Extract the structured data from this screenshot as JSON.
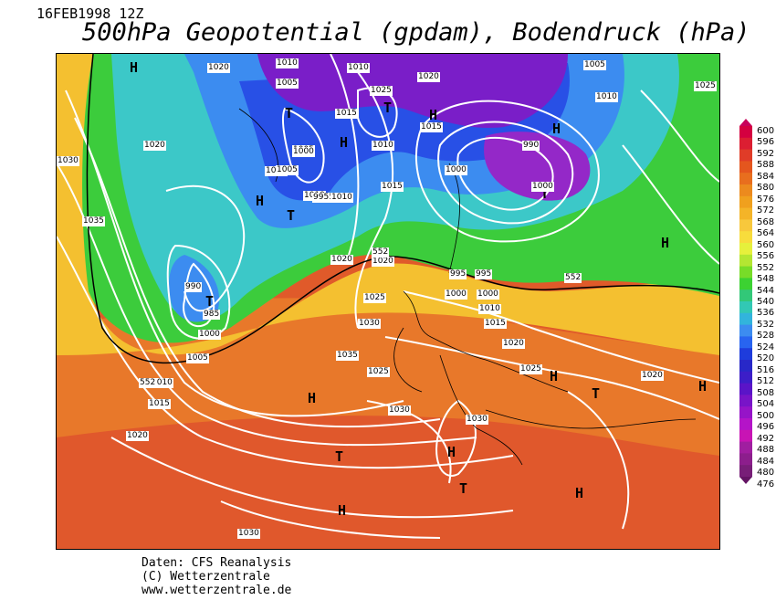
{
  "header": {
    "datetime": "16FEB1998 12Z",
    "title": "500hPa Geopotential (gpdam), Bodendruck (hPa)"
  },
  "footer": {
    "line1": "Daten: CFS Reanalysis",
    "line2": "(C) Wetterzentrale",
    "line3": "www.wetterzentrale.de"
  },
  "legend": {
    "ticks": [
      "600",
      "596",
      "592",
      "588",
      "584",
      "580",
      "576",
      "572",
      "568",
      "564",
      "560",
      "556",
      "552",
      "548",
      "544",
      "540",
      "536",
      "532",
      "528",
      "524",
      "520",
      "516",
      "512",
      "508",
      "504",
      "500",
      "496",
      "492",
      "488",
      "484",
      "480",
      "476"
    ],
    "colors": [
      "#c8005a",
      "#d40040",
      "#dc1e32",
      "#e03c28",
      "#e4561e",
      "#e86e1e",
      "#ec8a1e",
      "#f0a01e",
      "#f4b428",
      "#f8c83c",
      "#f8dc3c",
      "#e6f03c",
      "#b4e632",
      "#78dc28",
      "#3cd232",
      "#32c878",
      "#32c8b4",
      "#32b4dc",
      "#3c8cf0",
      "#2864f0",
      "#1e3cdc",
      "#2828c8",
      "#3c1ec8",
      "#5a14c8",
      "#7814c8",
      "#9614c8",
      "#b414c8",
      "#c814b4",
      "#a01ea0",
      "#8c1e8c",
      "#781e78",
      "#641464"
    ]
  },
  "map": {
    "high_symbol": "H",
    "low_symbol": "T",
    "pressure_labels": [
      "1020",
      "1010",
      "1010",
      "1005",
      "1005",
      "1020",
      "1010",
      "1025",
      "1025",
      "1005",
      "1015",
      "1015",
      "1010",
      "1000",
      "1010",
      "1030",
      "1005",
      "1020",
      "995",
      "990",
      "1035",
      "1000",
      "995",
      "1015",
      "995",
      "990",
      "985",
      "1000",
      "1005",
      "1020",
      "1025",
      "1030",
      "1035",
      "1000",
      "1010",
      "1015",
      "1020",
      "1025",
      "1020",
      "1020",
      "1030",
      "1030",
      "1030",
      "1025",
      "1010",
      "1015",
      "1020",
      "995",
      "1000",
      "1005",
      "1000",
      "1010"
    ],
    "height_labels": [
      "552",
      "552",
      "552"
    ]
  }
}
